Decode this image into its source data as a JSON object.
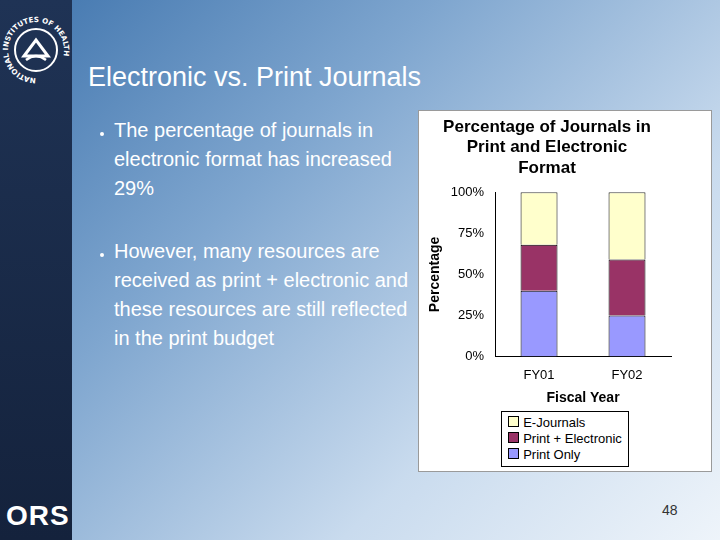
{
  "slide": {
    "title": "Electronic vs. Print Journals",
    "bullets": [
      "The percentage of journals in electronic format has increased 29%",
      "However, many resources are received as print + electronic and these resources are still reflected in the print budget"
    ],
    "logo_text": "NATIONAL INSTITUTES OF HEALTH",
    "footer_logo": "ORS",
    "page_number": 48
  },
  "chart_data": {
    "type": "bar",
    "title": [
      "Percentage of Journals in",
      "Print and Electronic",
      "Format"
    ],
    "xlabel": "Fiscal Year",
    "ylabel": "Percentage",
    "categories": [
      "FY01",
      "FY02"
    ],
    "series": [
      {
        "name": "Print Only",
        "color": "#9999ff",
        "values": [
          40,
          25
        ]
      },
      {
        "name": "Print + Electronic",
        "color": "#993366",
        "values": [
          28,
          34
        ]
      },
      {
        "name": "E-Journals",
        "color": "#ffffcc",
        "values": [
          32,
          41
        ]
      }
    ],
    "stacked": true,
    "ylim": [
      0,
      100
    ],
    "yticks": [
      {
        "value": 0,
        "label": "0%"
      },
      {
        "value": 25,
        "label": "25%"
      },
      {
        "value": 50,
        "label": "50%"
      },
      {
        "value": 75,
        "label": "75%"
      },
      {
        "value": 100,
        "label": "100%"
      }
    ],
    "grid": false,
    "legend": "bottom"
  }
}
